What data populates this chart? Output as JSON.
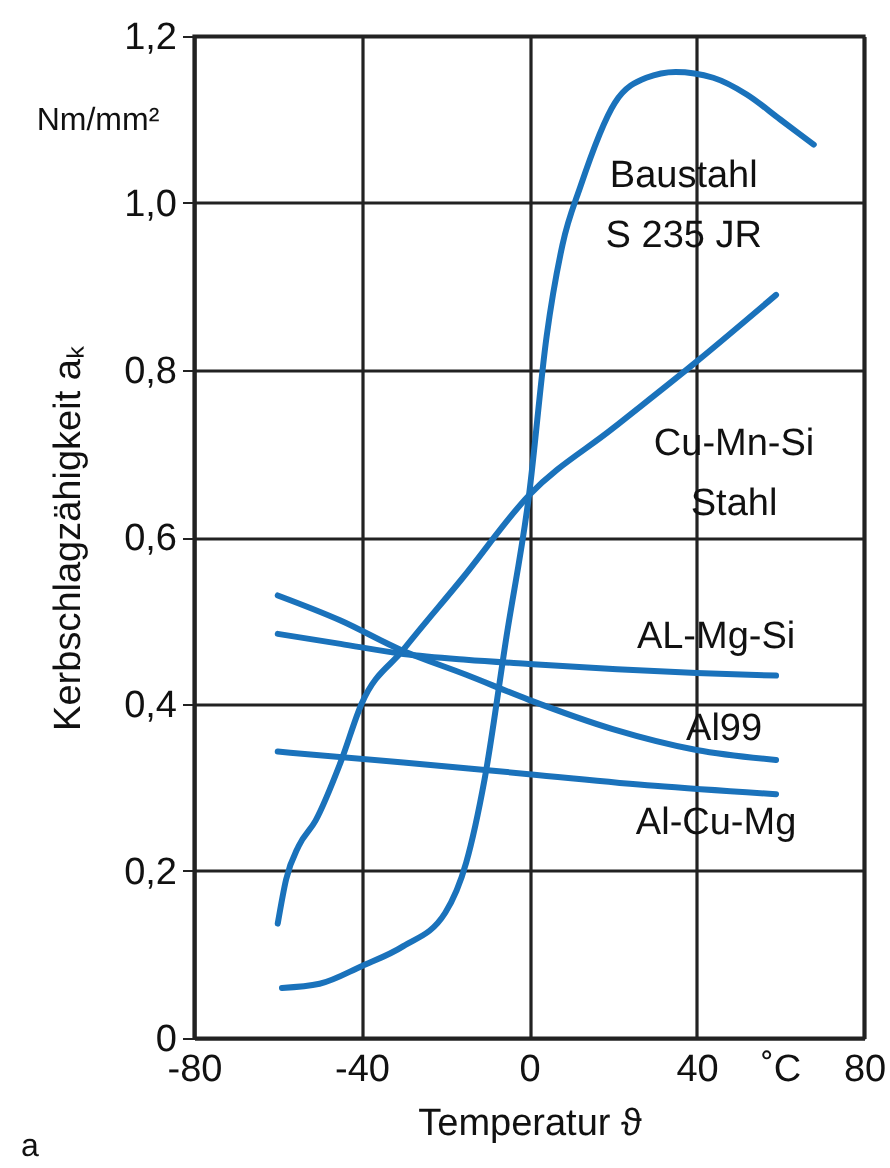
{
  "chart_data": {
    "type": "line",
    "xlabel": "Temperatur ϑ",
    "ylabel": "Kerbschlagzähigkeit aₖ",
    "annotations": [
      "Nm/mm²",
      "a"
    ],
    "xlim": [
      -80,
      80
    ],
    "xticks": [
      -80,
      -40,
      0,
      40,
      {
        "value": 60,
        "label": "˚C"
      },
      80
    ],
    "ylim": [
      0,
      1.2
    ],
    "yticks": [
      {
        "value": 0,
        "label": "0"
      },
      {
        "value": 0.2,
        "label": "0,2"
      },
      {
        "value": 0.4,
        "label": "0,4"
      },
      {
        "value": 0.6,
        "label": "0,6"
      },
      {
        "value": 0.8,
        "label": "0,8"
      },
      {
        "value": 1.0,
        "label": "1,0"
      },
      {
        "value": 1.2,
        "label": "1,2"
      }
    ],
    "grid": true,
    "marker": "none",
    "line_style": "solid",
    "series": [
      {
        "name": "Baustahl\nS 235 JR",
        "color": "#1a72bb",
        "x": [
          -59,
          -50,
          -40,
          -30,
          -20,
          -15,
          -10.6,
          -5.4,
          0,
          4.2,
          8,
          12.3,
          20.5,
          28,
          35,
          44,
          52,
          60,
          68
        ],
        "values": [
          0.06,
          0.065,
          0.086,
          0.11,
          0.15,
          0.21,
          0.31,
          0.48,
          0.65,
          0.84,
          0.95,
          1.02,
          1.12,
          1.15,
          1.157,
          1.15,
          1.13,
          1.1,
          1.07
        ]
      },
      {
        "name": "Cu-Mn-Si\nStahl",
        "color": "#1a72bb",
        "x": [
          -60,
          -58,
          -55,
          -51,
          -45,
          -40,
          -30,
          -16,
          0,
          20,
          40,
          59
        ],
        "values": [
          0.137,
          0.19,
          0.23,
          0.26,
          0.33,
          0.4,
          0.465,
          0.55,
          0.65,
          0.73,
          0.81,
          0.89
        ]
      },
      {
        "name": "AL-Mg-Si",
        "color": "#1a72bb",
        "x": [
          -60,
          -45,
          -30,
          -15,
          0,
          20,
          40,
          59
        ],
        "values": [
          0.484,
          0.472,
          0.46,
          0.453,
          0.448,
          0.442,
          0.437,
          0.434
        ]
      },
      {
        "name": "Al99",
        "color": "#1a72bb",
        "x": [
          -60,
          -45,
          -30.7,
          -15,
          0,
          20,
          40,
          59
        ],
        "values": [
          0.53,
          0.5,
          0.465,
          0.435,
          0.405,
          0.37,
          0.345,
          0.333
        ]
      },
      {
        "name": "Al-Cu-Mg",
        "color": "#1a72bb",
        "x": [
          -60,
          -30,
          0,
          30,
          59
        ],
        "values": [
          0.343,
          0.33,
          0.316,
          0.302,
          0.292
        ]
      }
    ]
  }
}
